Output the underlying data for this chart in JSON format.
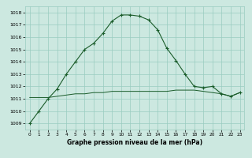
{
  "x": [
    0,
    1,
    2,
    3,
    4,
    5,
    6,
    7,
    8,
    9,
    10,
    11,
    12,
    13,
    14,
    15,
    16,
    17,
    18,
    19,
    20,
    21,
    22,
    23
  ],
  "line1": [
    1009,
    1010,
    1011,
    1011.8,
    1013,
    1014,
    1015,
    1015.5,
    1016.3,
    1017.3,
    1017.8,
    1017.8,
    1017.7,
    1017.4,
    1016.6,
    1015.1,
    1014.1,
    1013,
    1012,
    1011.9,
    1012,
    1011.4,
    1011.2,
    1011.5
  ],
  "line2": [
    1011.1,
    1011.1,
    1011.1,
    1011.2,
    1011.3,
    1011.4,
    1011.4,
    1011.5,
    1011.5,
    1011.6,
    1011.6,
    1011.6,
    1011.6,
    1011.6,
    1011.6,
    1011.6,
    1011.7,
    1011.7,
    1011.7,
    1011.6,
    1011.5,
    1011.4,
    1011.2,
    1011.5
  ],
  "bg_color": "#cce8e0",
  "grid_color": "#99ccc0",
  "line_color": "#1a5c2a",
  "xlabel": "Graphe pression niveau de la mer (hPa)",
  "ylim": [
    1008.5,
    1018.5
  ],
  "xlim": [
    -0.5,
    23.5
  ],
  "yticks": [
    1009,
    1010,
    1011,
    1012,
    1013,
    1014,
    1015,
    1016,
    1017,
    1018
  ],
  "xticks": [
    0,
    1,
    2,
    3,
    4,
    5,
    6,
    7,
    8,
    9,
    10,
    11,
    12,
    13,
    14,
    15,
    16,
    17,
    18,
    19,
    20,
    21,
    22,
    23
  ]
}
